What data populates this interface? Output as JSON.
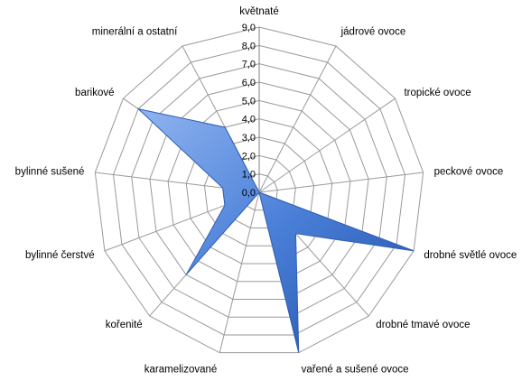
{
  "chart_data": {
    "type": "radar",
    "title": "",
    "categories": [
      "květnaté",
      "jádrové ovoce",
      "tropické ovoce",
      "peckové ovoce",
      "drobné světlé ovoce",
      "drobné tmavé ovoce",
      "vařené a sušené ovoce",
      "karamelizované",
      "kořenité",
      "bylinné čerstvé",
      "bylinné sušené",
      "barikové",
      "minerální a ostatní"
    ],
    "tick_labels": [
      "0,0",
      "1,0",
      "2,0",
      "3,0",
      "4,0",
      "5,0",
      "6,0",
      "7,0",
      "8,0",
      "9,0"
    ],
    "series": [
      {
        "values": [
          0,
          0,
          0,
          0,
          9.0,
          3.0,
          9.0,
          0,
          6.0,
          2.0,
          2.0,
          8.0,
          4.0
        ]
      }
    ],
    "rlim": [
      0,
      9
    ],
    "grid": true,
    "legend": "none",
    "colors": {
      "fill_light": "#8fb4f0",
      "fill": "#4a7fd8",
      "fill_dark": "#1f4fa8",
      "stroke": "#2f5fb5",
      "grid": "#9a9a9a",
      "axis": "#7f7f7f"
    }
  }
}
